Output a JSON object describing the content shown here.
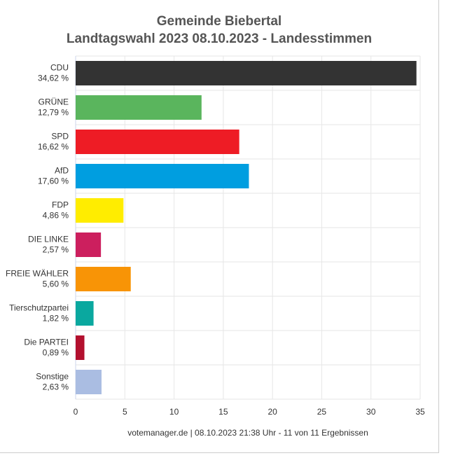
{
  "chart_data": {
    "type": "bar",
    "orientation": "horizontal",
    "title": "Gemeinde Biebertal",
    "subtitle": "Landtagswahl 2023 08.10.2023  - Landesstimmen",
    "categories": [
      "CDU",
      "GRÜNE",
      "SPD",
      "AfD",
      "FDP",
      "DIE LINKE",
      "FREIE WÄHLER",
      "Tierschutzpartei",
      "Die PARTEI",
      "Sonstige"
    ],
    "values": [
      34.62,
      12.79,
      16.62,
      17.6,
      4.86,
      2.57,
      5.6,
      1.82,
      0.89,
      2.63
    ],
    "value_labels": [
      "34,62 %",
      "12,79 %",
      "16,62 %",
      "17,60 %",
      "4,86 %",
      "2,57 %",
      "5,60 %",
      "1,82 %",
      "0,89 %",
      "2,63 %"
    ],
    "colors": [
      "#333333",
      "#5ab55d",
      "#ee1c25",
      "#009ee0",
      "#ffed00",
      "#cc1f5e",
      "#f89406",
      "#0aa89f",
      "#b3102e",
      "#aabde2"
    ],
    "xlim": [
      0,
      35
    ],
    "xticks": [
      0,
      5,
      10,
      15,
      20,
      25,
      30,
      35
    ],
    "grid": true,
    "xlabel": "",
    "ylabel": ""
  },
  "footer": "votemanager.de | 08.10.2023 21:38 Uhr - 11 von 11 Ergebnissen"
}
